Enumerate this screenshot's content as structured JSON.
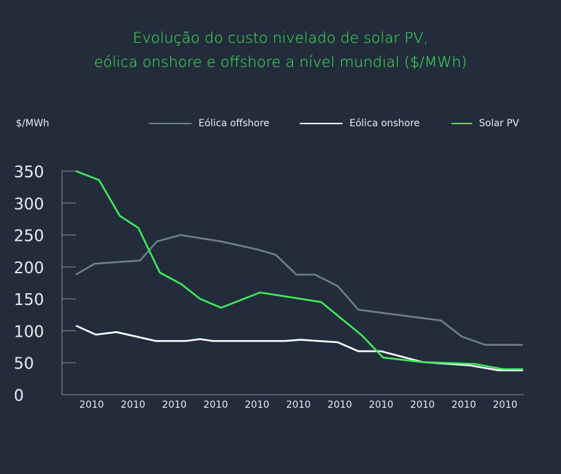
{
  "title_line1": "Evolução do custo nivelado de solar PV,",
  "title_line2": "eólica onshore e offshore a nível mundial ($/MWh)",
  "colors": {
    "background": "#232c3b",
    "offshore": "#6f7f8c",
    "onshore": "#ffffff",
    "solar": "#3ded5a",
    "axis": "#6f7f8c"
  },
  "chart_data": {
    "type": "line",
    "title": "Evolução do custo nivelado de solar PV, eólica onshore e offshore a nível mundial ($/MWh)",
    "ylabel": "$/MWh",
    "xlabel": "",
    "ylim": [
      0,
      350
    ],
    "yticks": [
      "0",
      "50",
      "100",
      "150",
      "200",
      "250",
      "300",
      "350"
    ],
    "xtick_labels": [
      "2010",
      "2010",
      "2010",
      "2010",
      "2010",
      "2010",
      "2010",
      "2010",
      "2010",
      "2010",
      "2010"
    ],
    "grid": false,
    "legend": "top",
    "series": [
      {
        "name": "Eólica offshore",
        "color": "#6f7f8c",
        "points": [
          [
            -0.38,
            188
          ],
          [
            0.07,
            205
          ],
          [
            1.17,
            210
          ],
          [
            1.58,
            240
          ],
          [
            2.15,
            250
          ],
          [
            3.12,
            240
          ],
          [
            4.03,
            227
          ],
          [
            4.45,
            219
          ],
          [
            4.95,
            188
          ],
          [
            5.4,
            188
          ],
          [
            5.95,
            170
          ],
          [
            6.45,
            133
          ],
          [
            8.45,
            116
          ],
          [
            8.95,
            91
          ],
          [
            9.52,
            78
          ],
          [
            10.43,
            78
          ]
        ]
      },
      {
        "name": "Eólica onshore",
        "color": "#ffffff",
        "points": [
          [
            -0.38,
            108
          ],
          [
            0.1,
            94
          ],
          [
            0.6,
            98
          ],
          [
            1.55,
            84
          ],
          [
            2.28,
            84
          ],
          [
            2.62,
            87
          ],
          [
            2.93,
            84
          ],
          [
            4.68,
            84
          ],
          [
            5.05,
            86
          ],
          [
            5.95,
            82
          ],
          [
            6.45,
            68
          ],
          [
            7.0,
            68
          ],
          [
            8.0,
            51
          ],
          [
            9.12,
            46
          ],
          [
            9.85,
            38
          ],
          [
            10.43,
            38
          ]
        ]
      },
      {
        "name": "Solar PV",
        "color": "#3ded5a",
        "points": [
          [
            -0.38,
            350
          ],
          [
            0.18,
            336
          ],
          [
            0.68,
            280
          ],
          [
            1.13,
            261
          ],
          [
            1.65,
            191
          ],
          [
            2.17,
            173
          ],
          [
            2.62,
            150
          ],
          [
            3.13,
            136
          ],
          [
            4.07,
            160
          ],
          [
            5.55,
            145
          ],
          [
            6.53,
            93
          ],
          [
            7.05,
            58
          ],
          [
            8.0,
            51
          ],
          [
            9.28,
            48
          ],
          [
            9.95,
            40
          ],
          [
            10.43,
            40
          ]
        ]
      }
    ]
  }
}
